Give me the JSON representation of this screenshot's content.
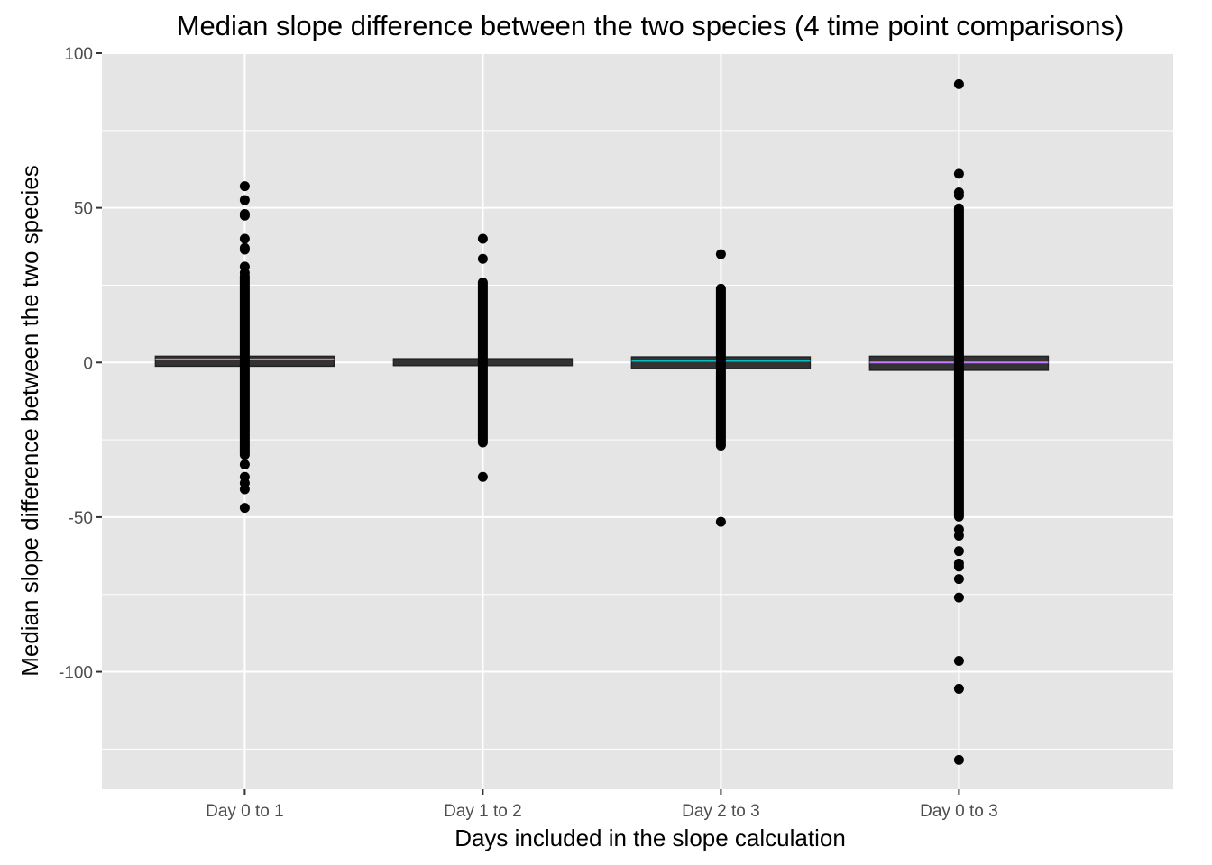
{
  "chart_data": {
    "type": "box",
    "title": "Median slope difference between the two species (4 time point comparisons)",
    "xlabel": "Days included in the slope calculation",
    "ylabel": "Median slope difference between the two species",
    "categories": [
      "Day 0 to 1",
      "Day 1 to 2",
      "Day 2 to 3",
      "Day 0 to 3"
    ],
    "ylim": [
      -138,
      100
    ],
    "yticks": [
      100,
      50,
      0,
      -50,
      -100
    ],
    "grid": true,
    "legend": "none",
    "colors": {
      "panel": "#e5e5e5",
      "grid": "#ffffff",
      "box_fill": "#333333",
      "point": "#000000"
    },
    "boxes": [
      {
        "category": "Day 0 to 1",
        "q1": -1.2,
        "median": 1.0,
        "q3": 2.0,
        "whisker_low": -1.2,
        "whisker_high": 2.0,
        "median_color": "#F8766D",
        "outliers": [
          57,
          52.5,
          48,
          47.5,
          40,
          37,
          36.5,
          31,
          29,
          -33,
          -37,
          -39,
          -41,
          -47
        ],
        "dense_range": [
          -30,
          28
        ]
      },
      {
        "category": "Day 1 to 2",
        "q1": -1.0,
        "median": 0.0,
        "q3": 1.2,
        "whisker_low": -1.0,
        "whisker_high": 1.2,
        "median_color": "#333333",
        "outliers": [
          40,
          33.5,
          -37
        ],
        "dense_range": [
          -26,
          26
        ]
      },
      {
        "category": "Day 2 to 3",
        "q1": -2.0,
        "median": 0.5,
        "q3": 1.8,
        "whisker_low": -2.0,
        "whisker_high": 1.8,
        "median_color": "#00BFC4",
        "outliers": [
          35,
          -51.5
        ],
        "dense_range": [
          -27,
          24
        ]
      },
      {
        "category": "Day 0 to 3",
        "q1": -2.5,
        "median": 0.0,
        "q3": 2.0,
        "whisker_low": -2.5,
        "whisker_high": 2.0,
        "median_color": "#C77CFF",
        "outliers": [
          90,
          61,
          55,
          54,
          -54,
          -56,
          -61,
          -65,
          -66,
          -70,
          -76,
          -96.5,
          -105.5,
          -128.5
        ],
        "dense_range": [
          -50,
          50
        ]
      }
    ]
  }
}
